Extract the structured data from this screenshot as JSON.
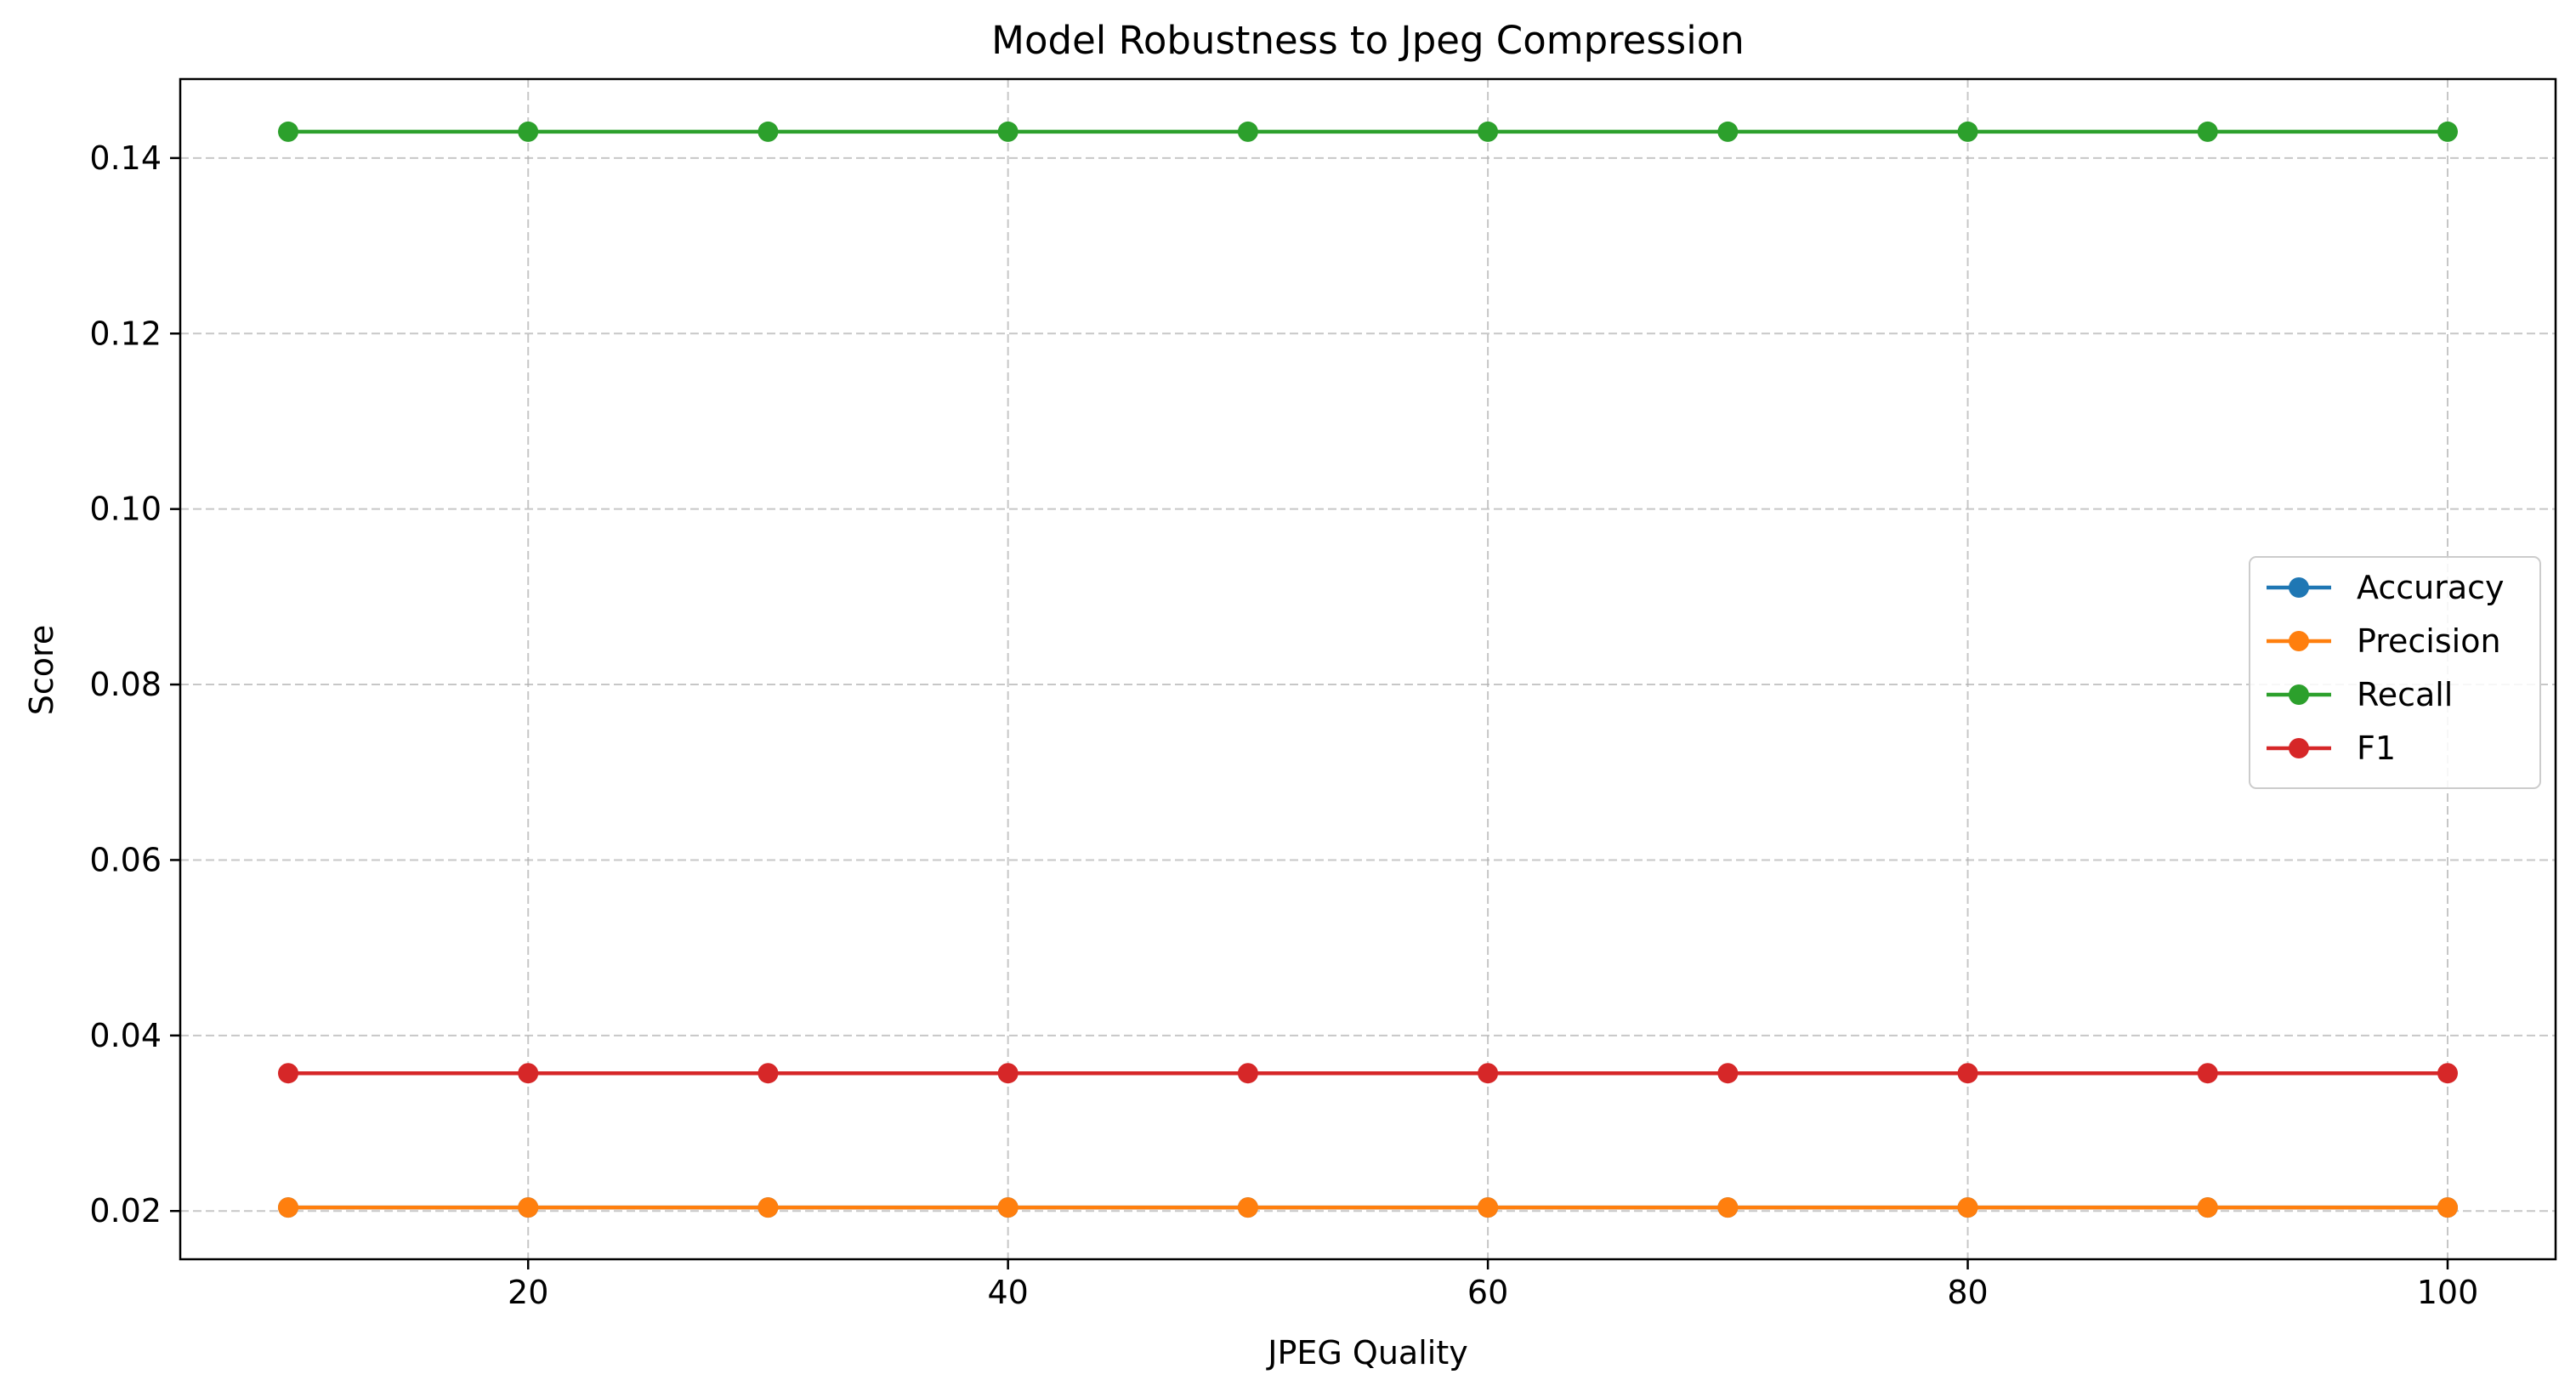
{
  "chart_data": {
    "type": "line",
    "title": "Model Robustness to Jpeg Compression",
    "xlabel": "JPEG Quality",
    "ylabel": "Score",
    "x": [
      10,
      20,
      30,
      40,
      50,
      60,
      70,
      80,
      90,
      100
    ],
    "xlim": [
      5.5,
      104.5
    ],
    "ylim": [
      0.0145,
      0.149
    ],
    "xticks": [
      20,
      40,
      60,
      80,
      100
    ],
    "xtick_labels": [
      "20",
      "40",
      "60",
      "80",
      "100"
    ],
    "yticks": [
      0.02,
      0.04,
      0.06,
      0.08,
      0.1,
      0.12,
      0.14
    ],
    "ytick_labels": [
      "0.02",
      "0.04",
      "0.06",
      "0.08",
      "0.10",
      "0.12",
      "0.14"
    ],
    "grid": true,
    "legend_position": "center-right",
    "series": [
      {
        "name": "Accuracy",
        "color": "#1f77b4",
        "marker": "circle",
        "values": [
          0.0204,
          0.0204,
          0.0204,
          0.0204,
          0.0204,
          0.0204,
          0.0204,
          0.0204,
          0.0204,
          0.0204
        ]
      },
      {
        "name": "Precision",
        "color": "#ff7f0e",
        "marker": "circle",
        "values": [
          0.0204,
          0.0204,
          0.0204,
          0.0204,
          0.0204,
          0.0204,
          0.0204,
          0.0204,
          0.0204,
          0.0204
        ]
      },
      {
        "name": "Recall",
        "color": "#2ca02c",
        "marker": "circle",
        "values": [
          0.143,
          0.143,
          0.143,
          0.143,
          0.143,
          0.143,
          0.143,
          0.143,
          0.143,
          0.143
        ]
      },
      {
        "name": "F1",
        "color": "#d62728",
        "marker": "circle",
        "values": [
          0.0357,
          0.0357,
          0.0357,
          0.0357,
          0.0357,
          0.0357,
          0.0357,
          0.0357,
          0.0357,
          0.0357
        ]
      }
    ]
  }
}
